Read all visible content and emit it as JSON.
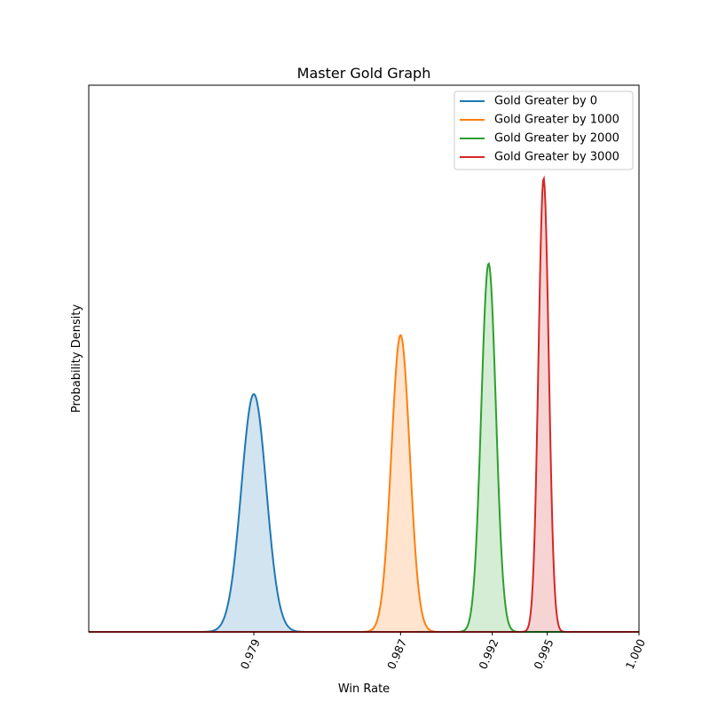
{
  "chart_data": {
    "type": "area",
    "title": "Master Gold Graph",
    "xlabel": "Win Rate",
    "ylabel": "Probability Density",
    "xlim": [
      0.97,
      1.0
    ],
    "ylim": [
      0,
      1.0
    ],
    "x_ticks": [
      "0.979",
      "0.987",
      "0.992",
      "0.995",
      "1.000"
    ],
    "x_tick_values": [
      0.979,
      0.987,
      0.992,
      0.995,
      1.0
    ],
    "y_ticks_visible": false,
    "grid": false,
    "legend_position": "top-right",
    "series": [
      {
        "name": "Gold Greater by 0",
        "color": "#1f77b4",
        "peak_x": 0.979,
        "peak_density": 0.435,
        "std": 0.00068
      },
      {
        "name": "Gold Greater by 1000",
        "color": "#ff7f0e",
        "peak_x": 0.987,
        "peak_density": 0.543,
        "std": 0.0005
      },
      {
        "name": "Gold Greater by 2000",
        "color": "#2ca02c",
        "peak_x": 0.9918,
        "peak_density": 0.674,
        "std": 0.0004
      },
      {
        "name": "Gold Greater by 3000",
        "color": "#d62728",
        "peak_x": 0.9948,
        "peak_density": 0.83,
        "std": 0.00028
      }
    ]
  }
}
